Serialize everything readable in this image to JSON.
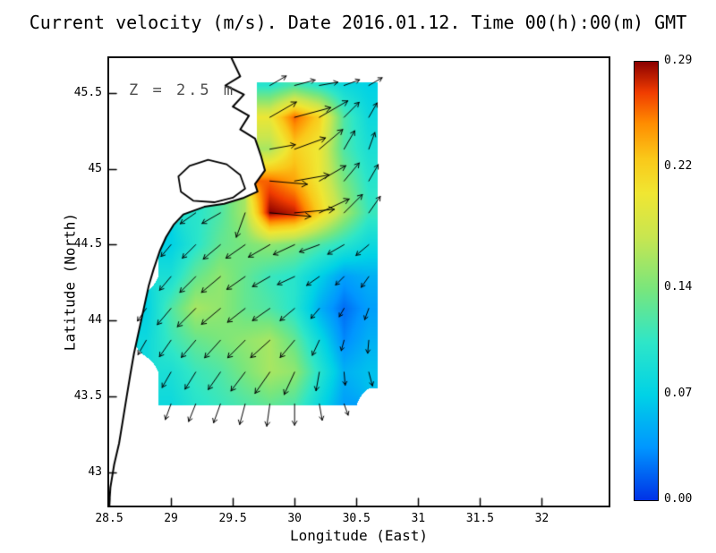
{
  "title": "Current velocity (m/s). Date 2016.01.12. Time 00(h):00(m) GMT",
  "annotation": "Z = 2.5 m",
  "axes": {
    "x": {
      "label": "Longitude (East)",
      "range": [
        28.5,
        32.54
      ],
      "ticks": [
        28.5,
        29,
        29.5,
        30,
        30.5,
        31,
        31.5,
        32
      ],
      "tick_labels": [
        "28.5",
        "29",
        "29.5",
        "30",
        "30.5",
        "31",
        "31.5",
        "32"
      ]
    },
    "y": {
      "label": "Latitude (North)",
      "range": [
        42.78,
        45.73
      ],
      "ticks": [
        43,
        43.5,
        44,
        44.5,
        45,
        45.5
      ],
      "tick_labels": [
        "43",
        "43.5",
        "44",
        "44.5",
        "45",
        "45.5"
      ]
    }
  },
  "colorbar": {
    "min": 0.0,
    "max": 0.29,
    "tick_values": [
      0.29,
      0.22,
      0.14,
      0.07,
      0.0
    ],
    "tick_labels": [
      "0.29",
      "0.22",
      "0.14",
      "0.07",
      "0.00"
    ],
    "stops": [
      [
        0,
        "#0032e6"
      ],
      [
        0.12,
        "#0096ff"
      ],
      [
        0.24,
        "#00d2e6"
      ],
      [
        0.36,
        "#2ee6c8"
      ],
      [
        0.48,
        "#78e67d"
      ],
      [
        0.6,
        "#c8e650"
      ],
      [
        0.7,
        "#f0e632"
      ],
      [
        0.78,
        "#fac819"
      ],
      [
        0.86,
        "#ff8c00"
      ],
      [
        0.93,
        "#f03c00"
      ],
      [
        1,
        "#8b0000"
      ]
    ]
  },
  "chart_data": {
    "type": "heatmap",
    "title": "Current velocity (m/s). Date 2016.01.12. Time 00(h):00(m) GMT",
    "xlabel": "Longitude (East)",
    "ylabel": "Latitude (North)",
    "units": "m/s",
    "depth": "Z = 2.5 m",
    "value_range": [
      0,
      0.29
    ],
    "lon_grid": [
      28.6,
      28.8,
      29.0,
      29.2,
      29.4,
      29.6,
      29.8,
      30.0,
      30.2,
      30.4,
      30.6
    ],
    "lat_grid": [
      45.55,
      45.34,
      45.13,
      44.92,
      44.71,
      44.5,
      44.29,
      44.08,
      43.87,
      43.66,
      43.45
    ],
    "values": [
      [
        null,
        null,
        null,
        null,
        null,
        null,
        0.1,
        0.12,
        0.1,
        0.08,
        0.07
      ],
      [
        null,
        null,
        null,
        null,
        null,
        null,
        0.2,
        0.26,
        0.22,
        0.12,
        0.08
      ],
      [
        null,
        null,
        null,
        null,
        null,
        null,
        0.16,
        0.22,
        0.2,
        0.12,
        0.09
      ],
      [
        null,
        null,
        null,
        null,
        null,
        null,
        0.26,
        0.24,
        0.2,
        0.14,
        0.1
      ],
      [
        null,
        null,
        null,
        0.1,
        0.12,
        0.16,
        0.29,
        0.28,
        0.22,
        0.16,
        0.11
      ],
      [
        null,
        null,
        0.07,
        0.1,
        0.13,
        0.14,
        0.15,
        0.14,
        0.12,
        0.1,
        0.08
      ],
      [
        null,
        null,
        0.09,
        0.13,
        0.15,
        0.13,
        0.11,
        0.1,
        0.07,
        0.04,
        0.05
      ],
      [
        null,
        0.07,
        0.12,
        0.16,
        0.15,
        0.13,
        0.12,
        0.1,
        0.05,
        0.02,
        0.04
      ],
      [
        null,
        0.08,
        0.11,
        0.13,
        0.14,
        0.15,
        0.16,
        0.13,
        0.08,
        0.03,
        0.05
      ],
      [
        null,
        null,
        0.09,
        0.11,
        0.12,
        0.14,
        0.16,
        0.15,
        0.1,
        0.05,
        0.06
      ],
      [
        null,
        null,
        0.08,
        0.1,
        0.11,
        0.12,
        0.13,
        0.12,
        0.08,
        0.04,
        null
      ]
    ],
    "vector_dirs_deg": [
      [
        null,
        null,
        null,
        null,
        null,
        null,
        30,
        15,
        10,
        20,
        30
      ],
      [
        null,
        null,
        null,
        null,
        null,
        null,
        30,
        15,
        30,
        45,
        60
      ],
      [
        null,
        null,
        null,
        null,
        null,
        null,
        10,
        20,
        40,
        60,
        70
      ],
      [
        null,
        null,
        null,
        null,
        null,
        null,
        -5,
        10,
        30,
        50,
        60
      ],
      [
        null,
        null,
        null,
        215,
        210,
        250,
        355,
        5,
        25,
        45,
        55
      ],
      [
        null,
        null,
        230,
        225,
        220,
        215,
        210,
        205,
        200,
        210,
        220
      ],
      [
        null,
        null,
        230,
        225,
        220,
        215,
        210,
        205,
        215,
        225,
        235
      ],
      [
        null,
        235,
        230,
        225,
        220,
        218,
        215,
        220,
        230,
        240,
        250
      ],
      [
        null,
        240,
        235,
        230,
        228,
        225,
        222,
        230,
        245,
        255,
        265
      ],
      [
        null,
        null,
        240,
        238,
        235,
        233,
        235,
        245,
        260,
        275,
        285
      ],
      [
        null,
        null,
        250,
        248,
        250,
        255,
        262,
        270,
        280,
        290,
        null
      ]
    ],
    "coastline": [
      [
        29.49,
        45.73
      ],
      [
        29.56,
        45.61
      ],
      [
        29.44,
        45.55
      ],
      [
        29.59,
        45.49
      ],
      [
        29.5,
        45.41
      ],
      [
        29.63,
        45.35
      ],
      [
        29.56,
        45.26
      ],
      [
        29.68,
        45.2
      ],
      [
        29.73,
        45.08
      ],
      [
        29.76,
        44.99
      ],
      [
        29.68,
        44.9
      ],
      [
        29.7,
        44.85
      ],
      [
        29.59,
        44.81
      ],
      [
        29.43,
        44.77
      ],
      [
        29.27,
        44.75
      ],
      [
        29.1,
        44.7
      ],
      [
        29.02,
        44.63
      ],
      [
        28.96,
        44.55
      ],
      [
        28.91,
        44.46
      ],
      [
        28.86,
        44.34
      ],
      [
        28.82,
        44.23
      ],
      [
        28.78,
        44.08
      ],
      [
        28.74,
        43.93
      ],
      [
        28.7,
        43.78
      ],
      [
        28.67,
        43.64
      ],
      [
        28.64,
        43.49
      ],
      [
        28.61,
        43.34
      ],
      [
        28.58,
        43.19
      ],
      [
        28.54,
        43.05
      ],
      [
        28.51,
        42.9
      ],
      [
        28.5,
        42.78
      ]
    ],
    "lagoon": [
      [
        29.06,
        44.95
      ],
      [
        29.15,
        45.02
      ],
      [
        29.3,
        45.06
      ],
      [
        29.45,
        45.03
      ],
      [
        29.56,
        44.96
      ],
      [
        29.6,
        44.87
      ],
      [
        29.5,
        44.81
      ],
      [
        29.35,
        44.78
      ],
      [
        29.18,
        44.79
      ],
      [
        29.08,
        44.85
      ]
    ]
  }
}
